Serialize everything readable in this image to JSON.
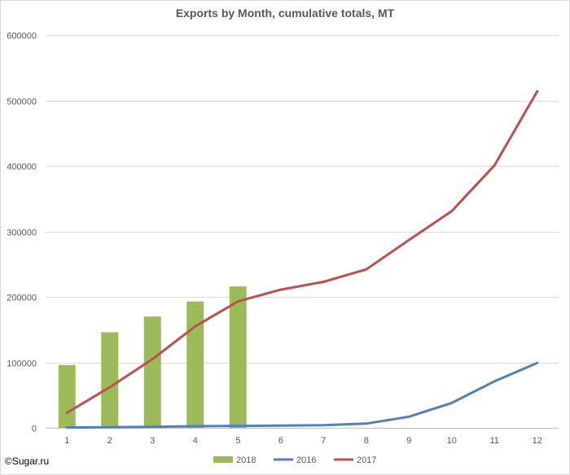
{
  "chart_data": {
    "type": "bar",
    "title": "Exports by Month, cumulative totals, MT",
    "xlabel": "",
    "ylabel": "",
    "categories": [
      "1",
      "2",
      "3",
      "4",
      "5",
      "6",
      "7",
      "8",
      "9",
      "10",
      "11",
      "12"
    ],
    "ylim": [
      0,
      600000
    ],
    "yticks": [
      0,
      100000,
      200000,
      300000,
      400000,
      500000,
      600000
    ],
    "ytick_labels": [
      "0",
      "100000",
      "200000",
      "300000",
      "400000",
      "500000",
      "600000"
    ],
    "grid": true,
    "legend": "bottom",
    "series": [
      {
        "name": "2018",
        "kind": "bar",
        "color": "#9bbb59",
        "values": [
          96000,
          146000,
          170000,
          193000,
          216000,
          null,
          null,
          null,
          null,
          null,
          null,
          null
        ]
      },
      {
        "name": "2016",
        "kind": "line",
        "color": "#4f81bd",
        "values": [
          500,
          1000,
          1500,
          2500,
          3000,
          3500,
          4000,
          6500,
          17000,
          38000,
          71000,
          99000
        ]
      },
      {
        "name": "2017",
        "kind": "line",
        "color": "#c0504d",
        "values": [
          23000,
          62000,
          105000,
          155000,
          193000,
          211000,
          223000,
          242000,
          287000,
          331000,
          401000,
          514000
        ]
      }
    ]
  },
  "credit": "©Sugar.ru"
}
